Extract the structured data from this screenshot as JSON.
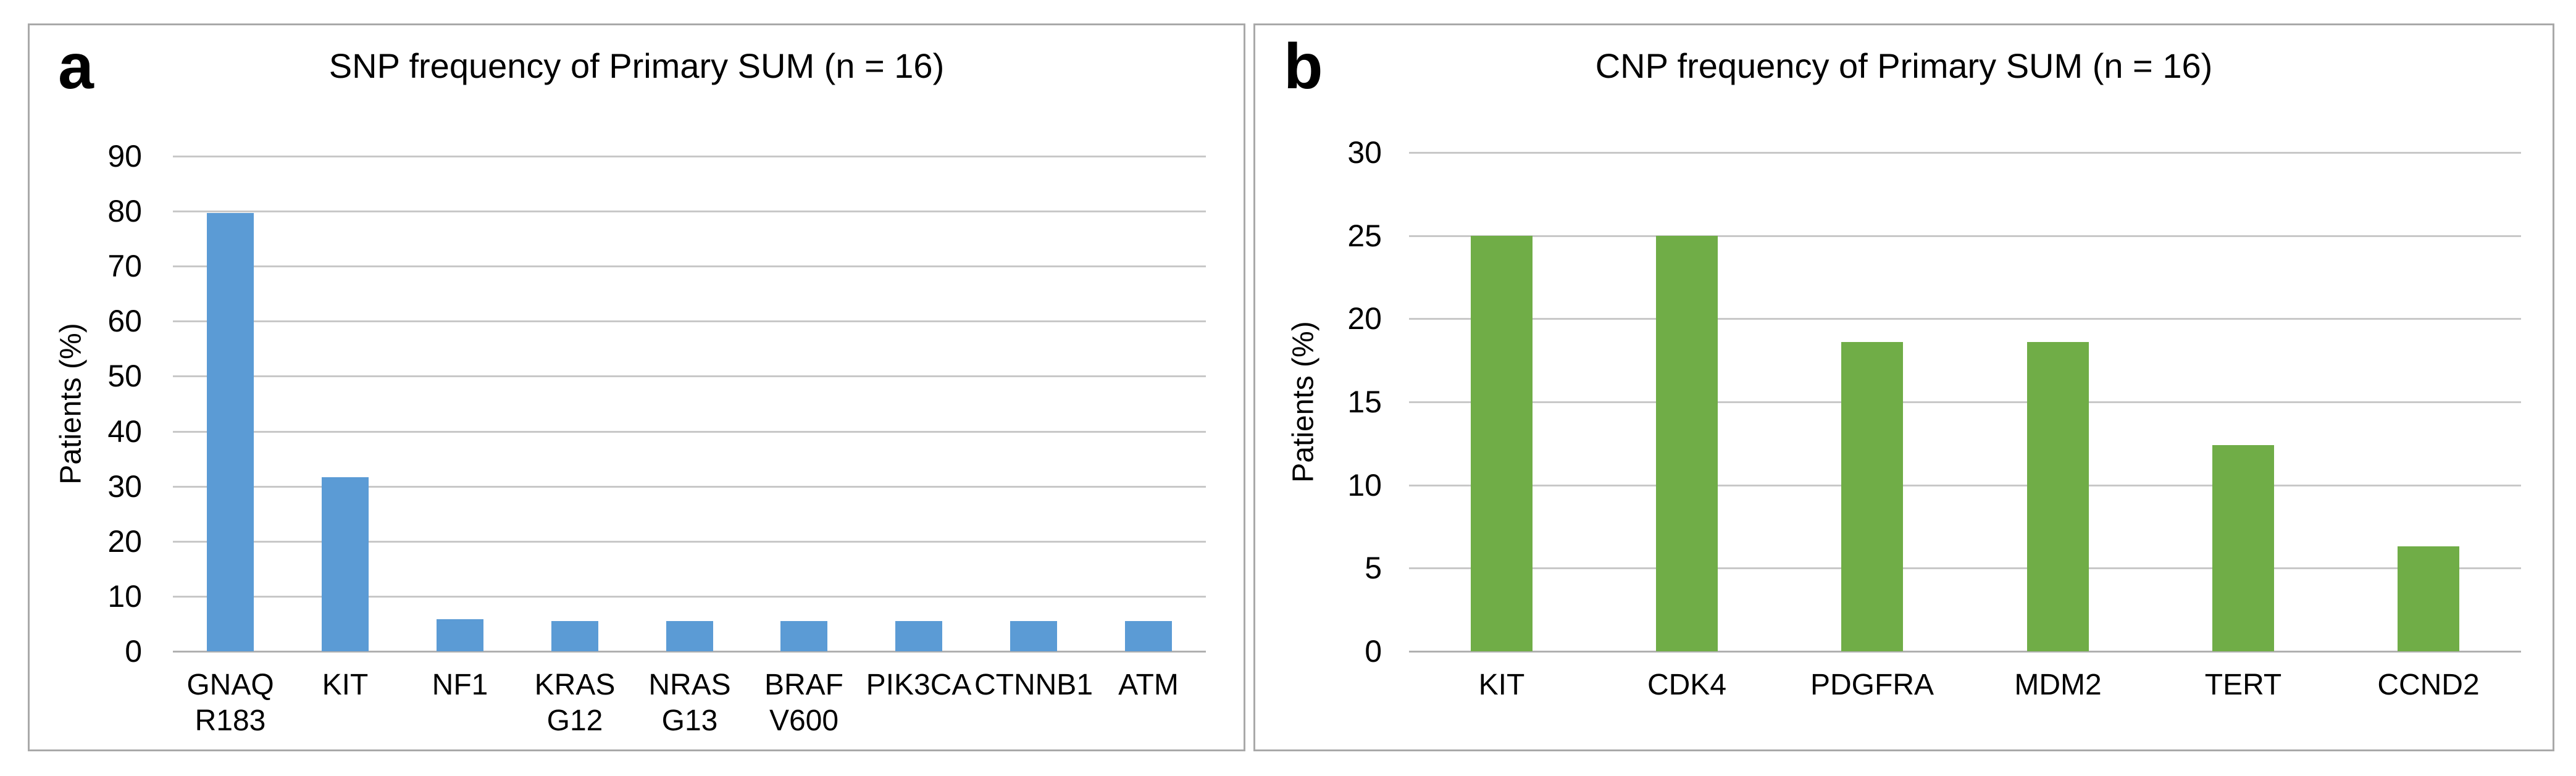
{
  "figure": {
    "background": "#ffffff",
    "panel_border_color": "#a9a9a9",
    "gridline_color": "#c8c8c8",
    "axis_line_color": "#b0b0b0",
    "panels": [
      {
        "label": "a"
      },
      {
        "label": "b"
      }
    ]
  },
  "chart_data": [
    {
      "type": "bar",
      "panel_label": "a",
      "title": "SNP frequency of Primary SUM (n = 16)",
      "xlabel": "",
      "ylabel": "Patients (%)",
      "categories": [
        "GNAQ\nR183",
        "KIT",
        "NF1",
        "KRAS\nG12",
        "NRAS\nG13",
        "BRAF\nV600",
        "PIK3CA",
        "CTNNB1",
        "ATM"
      ],
      "values": [
        79.7,
        31.6,
        5.8,
        5.5,
        5.5,
        5.5,
        5.5,
        5.5,
        5.5
      ],
      "ylim": [
        0,
        90
      ],
      "yticks": [
        0,
        10,
        20,
        30,
        40,
        50,
        60,
        70,
        80,
        90
      ],
      "grid": true,
      "legend": false,
      "bar_color": "#5B9BD5"
    },
    {
      "type": "bar",
      "panel_label": "b",
      "title": "CNP frequency of Primary SUM (n = 16)",
      "xlabel": "",
      "ylabel": "Patients (%)",
      "categories": [
        "KIT",
        "CDK4",
        "PDGFRA",
        "MDM2",
        "TERT",
        "CCND2"
      ],
      "values": [
        25,
        25,
        18.6,
        18.6,
        12.4,
        6.3
      ],
      "ylim": [
        0,
        30
      ],
      "yticks": [
        0,
        5,
        10,
        15,
        20,
        25,
        30
      ],
      "grid": true,
      "legend": false,
      "bar_color": "#70AD47"
    }
  ]
}
